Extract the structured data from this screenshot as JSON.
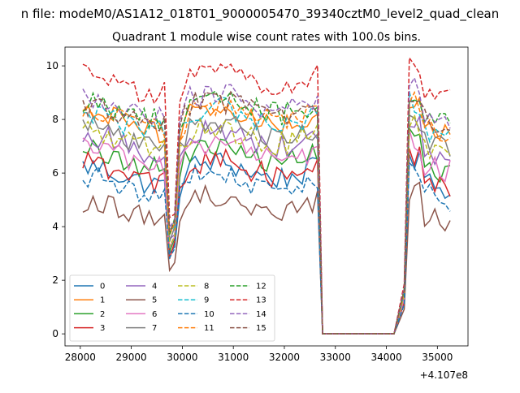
{
  "figure": {
    "suptitle": "n file: modeM0/AS1A12_018T01_9000005470_39340cztM0_level2_quad_clean",
    "title": "Quadrant 1 module wise count rates with 100.0s bins.",
    "offset_label": "+4.107e8"
  },
  "chart_data": {
    "type": "line",
    "title": "Quadrant 1 module wise count rates with 100.0s bins.",
    "xlabel": "",
    "ylabel": "",
    "x_offset": 410700000,
    "xlim": [
      27700,
      35600
    ],
    "ylim": [
      -0.45,
      10.7
    ],
    "xticks": [
      28000,
      29000,
      30000,
      31000,
      32000,
      33000,
      34000,
      35000
    ],
    "yticks": [
      0,
      2,
      4,
      6,
      8,
      10
    ],
    "grid": false,
    "legend": {
      "position": "lower-left",
      "columns": 4
    },
    "x_segments": [
      {
        "start": 28050,
        "end": 29650,
        "step": 100
      },
      {
        "start": 29750,
        "end": 29850,
        "step": 100
      },
      {
        "start": 29950,
        "end": 32650,
        "step": 100
      },
      {
        "start": 32750,
        "end": 34150,
        "step": 100
      },
      {
        "start": 34350,
        "end": 35250,
        "step": 100
      }
    ],
    "series": [
      {
        "name": "0",
        "color": "#1f77b4",
        "dash": "solid",
        "level": 5.9,
        "dip": 2.9
      },
      {
        "name": "1",
        "color": "#ff7f0e",
        "dash": "solid",
        "level": 7.9,
        "dip": 3.7
      },
      {
        "name": "2",
        "color": "#2ca02c",
        "dash": "solid",
        "level": 6.5,
        "dip": 3.1
      },
      {
        "name": "3",
        "color": "#d62728",
        "dash": "solid",
        "level": 6.0,
        "dip": 2.9
      },
      {
        "name": "4",
        "color": "#9467bd",
        "dash": "solid",
        "level": 7.1,
        "dip": 3.4
      },
      {
        "name": "5",
        "color": "#8c564b",
        "dash": "solid",
        "level": 4.6,
        "dip": 2.3
      },
      {
        "name": "6",
        "color": "#e377c2",
        "dash": "solid",
        "level": 6.6,
        "dip": 3.2
      },
      {
        "name": "7",
        "color": "#7f7f7f",
        "dash": "solid",
        "level": 7.4,
        "dip": 3.5
      },
      {
        "name": "8",
        "color": "#bcbd22",
        "dash": "dashed",
        "level": 7.2,
        "dip": 3.4
      },
      {
        "name": "9",
        "color": "#17becf",
        "dash": "dashed",
        "level": 7.9,
        "dip": 3.7
      },
      {
        "name": "10",
        "color": "#1f77b4",
        "dash": "dashed",
        "level": 5.5,
        "dip": 2.8
      },
      {
        "name": "11",
        "color": "#ff7f0e",
        "dash": "dashed",
        "level": 8.0,
        "dip": 3.7
      },
      {
        "name": "12",
        "color": "#2ca02c",
        "dash": "dashed",
        "level": 8.3,
        "dip": 3.8
      },
      {
        "name": "13",
        "color": "#d62728",
        "dash": "dashed",
        "level": 9.3,
        "dip": 4.2
      },
      {
        "name": "14",
        "color": "#9467bd",
        "dash": "dashed",
        "level": 8.5,
        "dip": 3.9
      },
      {
        "name": "15",
        "color": "#8c564b",
        "dash": "dashed",
        "level": 8.2,
        "dip": 3.8
      }
    ]
  }
}
